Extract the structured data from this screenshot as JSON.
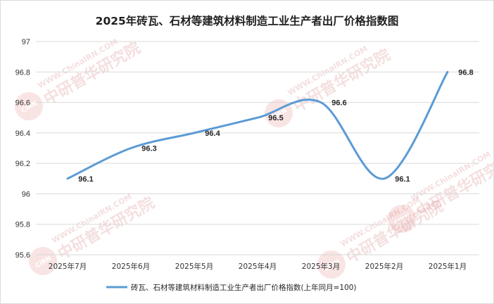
{
  "chart_data": {
    "type": "line",
    "title": "2025年砖瓦、石材等建筑材料制造工业生产者出厂价格指数图",
    "categories": [
      "2025年7月",
      "2025年6月",
      "2025年5月",
      "2025年4月",
      "2025年3月",
      "2025年2月",
      "2025年1月"
    ],
    "series": [
      {
        "name": "砖瓦、石材等建筑材料制造工业生产者出厂价格指数(上年同月=100)",
        "values": [
          96.1,
          96.3,
          96.4,
          96.5,
          96.6,
          96.1,
          96.8
        ],
        "labels": [
          "96.1",
          "96.3",
          "96.4",
          "96.5",
          "96.6",
          "96.1",
          "96.8"
        ],
        "color": "#5b9bd5"
      }
    ],
    "ylim": [
      95.6,
      97
    ],
    "yticks": [
      "95.6",
      "95.8",
      "96",
      "96.2",
      "96.4",
      "96.6",
      "96.8",
      "97"
    ],
    "grid": true,
    "legend": "bottom",
    "smooth": true
  },
  "watermark": {
    "url_text": "WWW.ChinaIRN.COM",
    "brand_text": "中研普华研究院",
    "logo_text": "CIRN"
  }
}
